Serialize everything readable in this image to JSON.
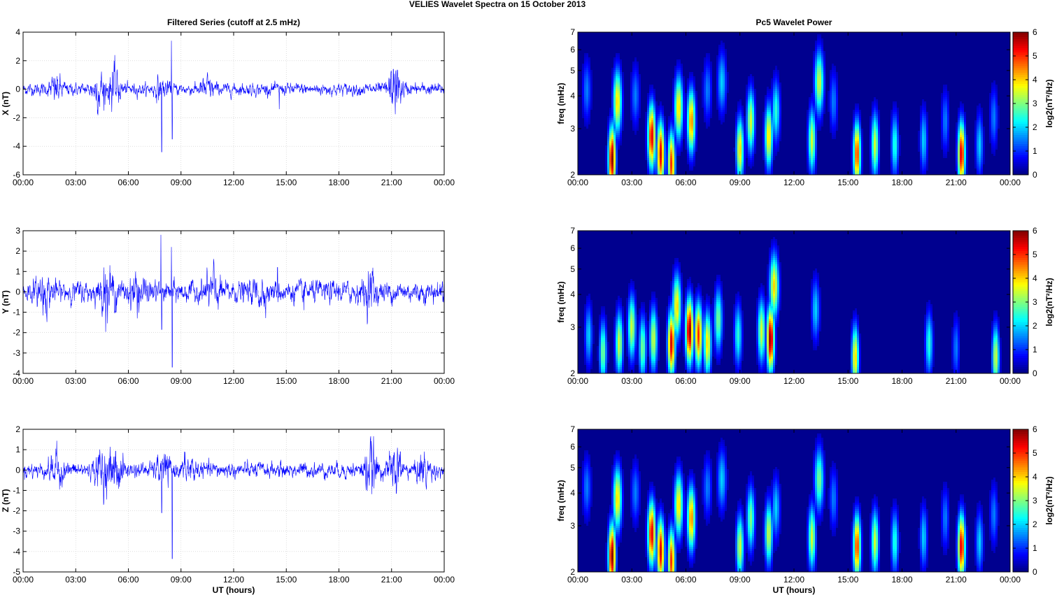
{
  "figure": {
    "suptitle": "VELIES Wavelet Spectra on 15 October   2013",
    "left_title": "Filtered Series (cutoff at 2.5 mHz)",
    "right_title": "Pc5 Wavelet Power",
    "x_ticks": [
      "00:00",
      "03:00",
      "06:00",
      "09:00",
      "12:00",
      "15:00",
      "18:00",
      "21:00",
      "00:00"
    ],
    "xlabel": "UT (hours)",
    "colors": {
      "trace": "#0000ff",
      "background": "#00008f",
      "axes": "#000000"
    }
  },
  "chart_data": [
    {
      "type": "line",
      "ylabel": "X (nT)",
      "xlim": [
        0,
        24
      ],
      "ylim": [
        -6,
        4
      ],
      "yticks": [
        4,
        2,
        0,
        -2,
        -4,
        -6
      ],
      "baseline_amplitude": 0.2,
      "bursts": [
        {
          "t": 1.9,
          "a": 0.35
        },
        {
          "t": 4.3,
          "a": 0.5
        },
        {
          "t": 5.2,
          "a": 0.55
        },
        {
          "t": 7.9,
          "a": 0.3
        },
        {
          "t": 10.5,
          "a": 0.3
        },
        {
          "t": 21.2,
          "a": 0.75
        }
      ],
      "spikes": [
        {
          "t": 4.6,
          "y": -1.5
        },
        {
          "t": 5.1,
          "y": 1.2
        },
        {
          "t": 7.9,
          "y": -4.4
        },
        {
          "t": 8.45,
          "y": 3.4
        },
        {
          "t": 8.5,
          "y": -3.5
        },
        {
          "t": 14.6,
          "y": -1.4
        },
        {
          "t": 21.1,
          "y": 1.4
        }
      ]
    },
    {
      "type": "heatmap",
      "ylabel": "freq (mHz)",
      "yscale": "log",
      "ylim": [
        2,
        7
      ],
      "yticks": [
        2,
        3,
        4,
        5,
        6,
        7
      ],
      "colorbar": {
        "label": "log2(nT²/Hz)",
        "range": [
          0,
          6
        ],
        "ticks": [
          0,
          1,
          2,
          3,
          4,
          5,
          6
        ]
      },
      "peaks": [
        {
          "t": 0.5,
          "f": 4.2,
          "a": 1.5
        },
        {
          "t": 1.9,
          "f": 2.3,
          "a": 6
        },
        {
          "t": 2.2,
          "f": 3.8,
          "a": 4
        },
        {
          "t": 3.2,
          "f": 4.0,
          "a": 1.5
        },
        {
          "t": 4.1,
          "f": 2.8,
          "a": 5.5
        },
        {
          "t": 4.6,
          "f": 2.4,
          "a": 5.5
        },
        {
          "t": 5.2,
          "f": 2.2,
          "a": 5
        },
        {
          "t": 5.6,
          "f": 3.6,
          "a": 4
        },
        {
          "t": 6.3,
          "f": 3.2,
          "a": 4.5
        },
        {
          "t": 7.2,
          "f": 4.2,
          "a": 1.5
        },
        {
          "t": 8.0,
          "f": 4.5,
          "a": 2
        },
        {
          "t": 9.0,
          "f": 2.5,
          "a": 4
        },
        {
          "t": 9.6,
          "f": 3.2,
          "a": 3.5
        },
        {
          "t": 10.6,
          "f": 2.8,
          "a": 4
        },
        {
          "t": 11.0,
          "f": 3.5,
          "a": 2.5
        },
        {
          "t": 13.0,
          "f": 2.7,
          "a": 3.5
        },
        {
          "t": 13.4,
          "f": 4.5,
          "a": 3.5
        },
        {
          "t": 14.2,
          "f": 3.8,
          "a": 1.5
        },
        {
          "t": 15.5,
          "f": 2.4,
          "a": 5
        },
        {
          "t": 16.5,
          "f": 2.6,
          "a": 3.5
        },
        {
          "t": 17.6,
          "f": 2.6,
          "a": 2.5
        },
        {
          "t": 19.2,
          "f": 2.7,
          "a": 2
        },
        {
          "t": 20.4,
          "f": 3.2,
          "a": 1.5
        },
        {
          "t": 21.3,
          "f": 2.4,
          "a": 5.5
        },
        {
          "t": 22.3,
          "f": 2.6,
          "a": 2
        },
        {
          "t": 23.1,
          "f": 3.3,
          "a": 1.5
        }
      ]
    },
    {
      "type": "line",
      "ylabel": "Y (nT)",
      "xlim": [
        0,
        24
      ],
      "ylim": [
        -4,
        3
      ],
      "yticks": [
        3,
        2,
        1,
        0,
        -1,
        -2,
        -3,
        -4
      ],
      "baseline_amplitude": 0.25,
      "bursts": [
        {
          "t": 1.2,
          "a": 0.3
        },
        {
          "t": 4.8,
          "a": 0.4
        },
        {
          "t": 6.5,
          "a": 0.35
        },
        {
          "t": 10.8,
          "a": 0.35
        },
        {
          "t": 13.5,
          "a": 0.2
        },
        {
          "t": 19.8,
          "a": 0.3
        }
      ],
      "spikes": [
        {
          "t": 4.6,
          "y": 1.2
        },
        {
          "t": 5.3,
          "y": -1.0
        },
        {
          "t": 7.85,
          "y": 2.8
        },
        {
          "t": 7.9,
          "y": -1.85
        },
        {
          "t": 8.45,
          "y": 2.2
        },
        {
          "t": 8.5,
          "y": -3.7
        },
        {
          "t": 14.5,
          "y": 1.2
        },
        {
          "t": 16.0,
          "y": -0.9
        },
        {
          "t": 19.9,
          "y": 1.0
        },
        {
          "t": 23.9,
          "y": 0.5
        }
      ]
    },
    {
      "type": "heatmap",
      "ylabel": "freq (mHz)",
      "yscale": "log",
      "ylim": [
        2,
        7
      ],
      "yticks": [
        2,
        3,
        4,
        5,
        6,
        7
      ],
      "colorbar": {
        "label": "log2(nT²/Hz)",
        "range": [
          0,
          6
        ],
        "ticks": [
          0,
          1,
          2,
          3,
          4,
          5,
          6
        ]
      },
      "peaks": [
        {
          "t": 0.6,
          "f": 2.8,
          "a": 2
        },
        {
          "t": 1.4,
          "f": 2.4,
          "a": 3
        },
        {
          "t": 2.3,
          "f": 2.6,
          "a": 3.5
        },
        {
          "t": 3.0,
          "f": 3.0,
          "a": 3.5
        },
        {
          "t": 3.6,
          "f": 2.5,
          "a": 3
        },
        {
          "t": 4.2,
          "f": 2.7,
          "a": 3.5
        },
        {
          "t": 5.2,
          "f": 2.6,
          "a": 5.5
        },
        {
          "t": 5.5,
          "f": 3.6,
          "a": 4
        },
        {
          "t": 6.2,
          "f": 2.9,
          "a": 6
        },
        {
          "t": 6.7,
          "f": 2.8,
          "a": 5
        },
        {
          "t": 7.2,
          "f": 2.6,
          "a": 4
        },
        {
          "t": 7.8,
          "f": 3.2,
          "a": 3
        },
        {
          "t": 8.9,
          "f": 2.8,
          "a": 2.5
        },
        {
          "t": 10.2,
          "f": 2.9,
          "a": 3.5
        },
        {
          "t": 10.7,
          "f": 2.7,
          "a": 6
        },
        {
          "t": 10.9,
          "f": 4.3,
          "a": 4
        },
        {
          "t": 13.2,
          "f": 3.5,
          "a": 2
        },
        {
          "t": 15.4,
          "f": 2.3,
          "a": 4
        },
        {
          "t": 19.5,
          "f": 2.6,
          "a": 2.5
        },
        {
          "t": 21.0,
          "f": 2.5,
          "a": 1.5
        },
        {
          "t": 23.2,
          "f": 2.3,
          "a": 3.5
        }
      ]
    },
    {
      "type": "line",
      "ylabel": "Z (nT)",
      "xlim": [
        0,
        24
      ],
      "ylim": [
        -5,
        2
      ],
      "yticks": [
        2,
        1,
        0,
        -1,
        -2,
        -3,
        -4,
        -5
      ],
      "baseline_amplitude": 0.18,
      "bursts": [
        {
          "t": 1.9,
          "a": 0.35
        },
        {
          "t": 4.5,
          "a": 0.45
        },
        {
          "t": 5.3,
          "a": 0.45
        },
        {
          "t": 8.0,
          "a": 0.3
        },
        {
          "t": 9.5,
          "a": 0.25
        },
        {
          "t": 19.8,
          "a": 0.5
        },
        {
          "t": 21.2,
          "a": 0.45
        },
        {
          "t": 22.8,
          "a": 0.3
        }
      ],
      "spikes": [
        {
          "t": 1.9,
          "y": 0.8
        },
        {
          "t": 7.9,
          "y": -2.1
        },
        {
          "t": 8.5,
          "y": -4.35
        },
        {
          "t": 9.2,
          "y": 0.9
        },
        {
          "t": 19.85,
          "y": 1.2
        },
        {
          "t": 21.5,
          "y": 0.9
        }
      ]
    },
    {
      "type": "heatmap",
      "ylabel": "freq (mHz)",
      "yscale": "log",
      "ylim": [
        2,
        7
      ],
      "yticks": [
        2,
        3,
        4,
        5,
        6,
        7
      ],
      "colorbar": {
        "label": "log2(nT²/Hz)",
        "range": [
          0,
          6
        ],
        "ticks": [
          0,
          1,
          2,
          3,
          4,
          5,
          6
        ]
      },
      "peaks": [
        {
          "t": 0.5,
          "f": 4.2,
          "a": 1.5
        },
        {
          "t": 1.9,
          "f": 2.3,
          "a": 6
        },
        {
          "t": 2.2,
          "f": 3.8,
          "a": 4
        },
        {
          "t": 3.2,
          "f": 4.0,
          "a": 1.5
        },
        {
          "t": 4.1,
          "f": 2.8,
          "a": 5.5
        },
        {
          "t": 4.6,
          "f": 2.4,
          "a": 5.5
        },
        {
          "t": 5.2,
          "f": 2.2,
          "a": 5
        },
        {
          "t": 5.6,
          "f": 3.6,
          "a": 4
        },
        {
          "t": 6.3,
          "f": 3.2,
          "a": 4.5
        },
        {
          "t": 7.2,
          "f": 4.2,
          "a": 1.5
        },
        {
          "t": 8.0,
          "f": 4.5,
          "a": 2
        },
        {
          "t": 9.0,
          "f": 2.5,
          "a": 3.5
        },
        {
          "t": 9.6,
          "f": 3.2,
          "a": 3
        },
        {
          "t": 10.6,
          "f": 2.8,
          "a": 3.5
        },
        {
          "t": 11.0,
          "f": 3.5,
          "a": 2
        },
        {
          "t": 13.0,
          "f": 2.7,
          "a": 3.5
        },
        {
          "t": 13.4,
          "f": 4.5,
          "a": 3
        },
        {
          "t": 14.2,
          "f": 3.8,
          "a": 1.5
        },
        {
          "t": 15.5,
          "f": 2.5,
          "a": 5
        },
        {
          "t": 16.5,
          "f": 2.6,
          "a": 3.5
        },
        {
          "t": 17.6,
          "f": 2.6,
          "a": 2.5
        },
        {
          "t": 19.2,
          "f": 2.7,
          "a": 2
        },
        {
          "t": 20.4,
          "f": 3.2,
          "a": 1.5
        },
        {
          "t": 21.3,
          "f": 2.5,
          "a": 5.5
        },
        {
          "t": 22.3,
          "f": 2.6,
          "a": 2
        },
        {
          "t": 23.1,
          "f": 3.3,
          "a": 1.5
        }
      ]
    }
  ]
}
